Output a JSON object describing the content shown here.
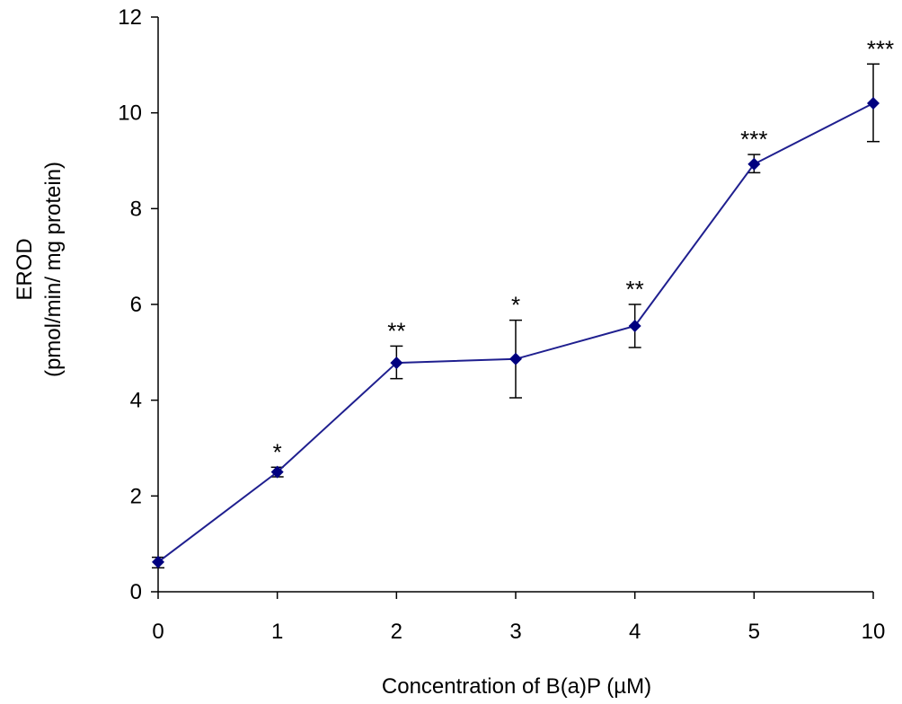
{
  "chart_data": {
    "type": "line",
    "categories": [
      "0",
      "1",
      "2",
      "3",
      "4",
      "5",
      "10"
    ],
    "values": [
      0.62,
      2.5,
      4.78,
      4.86,
      5.55,
      8.93,
      10.2
    ],
    "error_low": [
      0.5,
      2.4,
      4.45,
      4.05,
      5.1,
      8.75,
      9.4
    ],
    "error_high": [
      0.72,
      2.6,
      5.13,
      5.67,
      6.0,
      9.13,
      11.02
    ],
    "significance": [
      "",
      "*",
      "**",
      "*",
      "**",
      "***",
      "***"
    ],
    "xlabel": "Concentration of B(a)P (µM)",
    "ylabel_line1": "EROD",
    "ylabel_line2": "(pmol/min/ mg protein)",
    "ylim": [
      0,
      12
    ],
    "yticks": [
      "0",
      "2",
      "4",
      "6",
      "8",
      "10",
      "12"
    ],
    "grid": false,
    "legend": "none",
    "line_color": "#1f1f8f",
    "marker_color": "#000080",
    "marker": "diamond"
  }
}
